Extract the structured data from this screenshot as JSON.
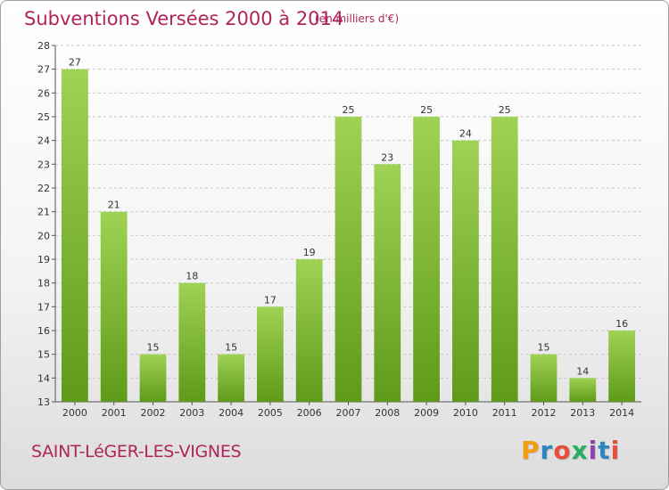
{
  "header": {
    "title": "Subventions Versées 2000 à 2014",
    "unit": "(en milliers d'€)"
  },
  "footer": {
    "commune": "SAINT-LéGER-LES-VIGNES",
    "brand_letters": [
      "P",
      "r",
      "o",
      "x",
      "i",
      "t",
      "i"
    ]
  },
  "colors": {
    "bar_light": "#9fd255",
    "bar_dark": "#5f9a1a",
    "grid": "#c8c8c8",
    "title": "#b0245a"
  },
  "chart_data": {
    "type": "bar",
    "title": "Subventions Versées 2000 à 2014",
    "subtitle": "(en milliers d'€)",
    "xlabel": "",
    "ylabel": "",
    "ylim": [
      13,
      28
    ],
    "yticks": [
      13,
      14,
      15,
      16,
      17,
      18,
      19,
      20,
      21,
      22,
      23,
      24,
      25,
      26,
      27,
      28
    ],
    "grid": true,
    "categories": [
      "2000",
      "2001",
      "2002",
      "2003",
      "2004",
      "2005",
      "2006",
      "2007",
      "2008",
      "2009",
      "2010",
      "2011",
      "2012",
      "2013",
      "2014"
    ],
    "values": [
      27,
      21,
      15,
      18,
      15,
      17,
      19,
      25,
      23,
      25,
      24,
      25,
      15,
      14,
      16
    ]
  }
}
